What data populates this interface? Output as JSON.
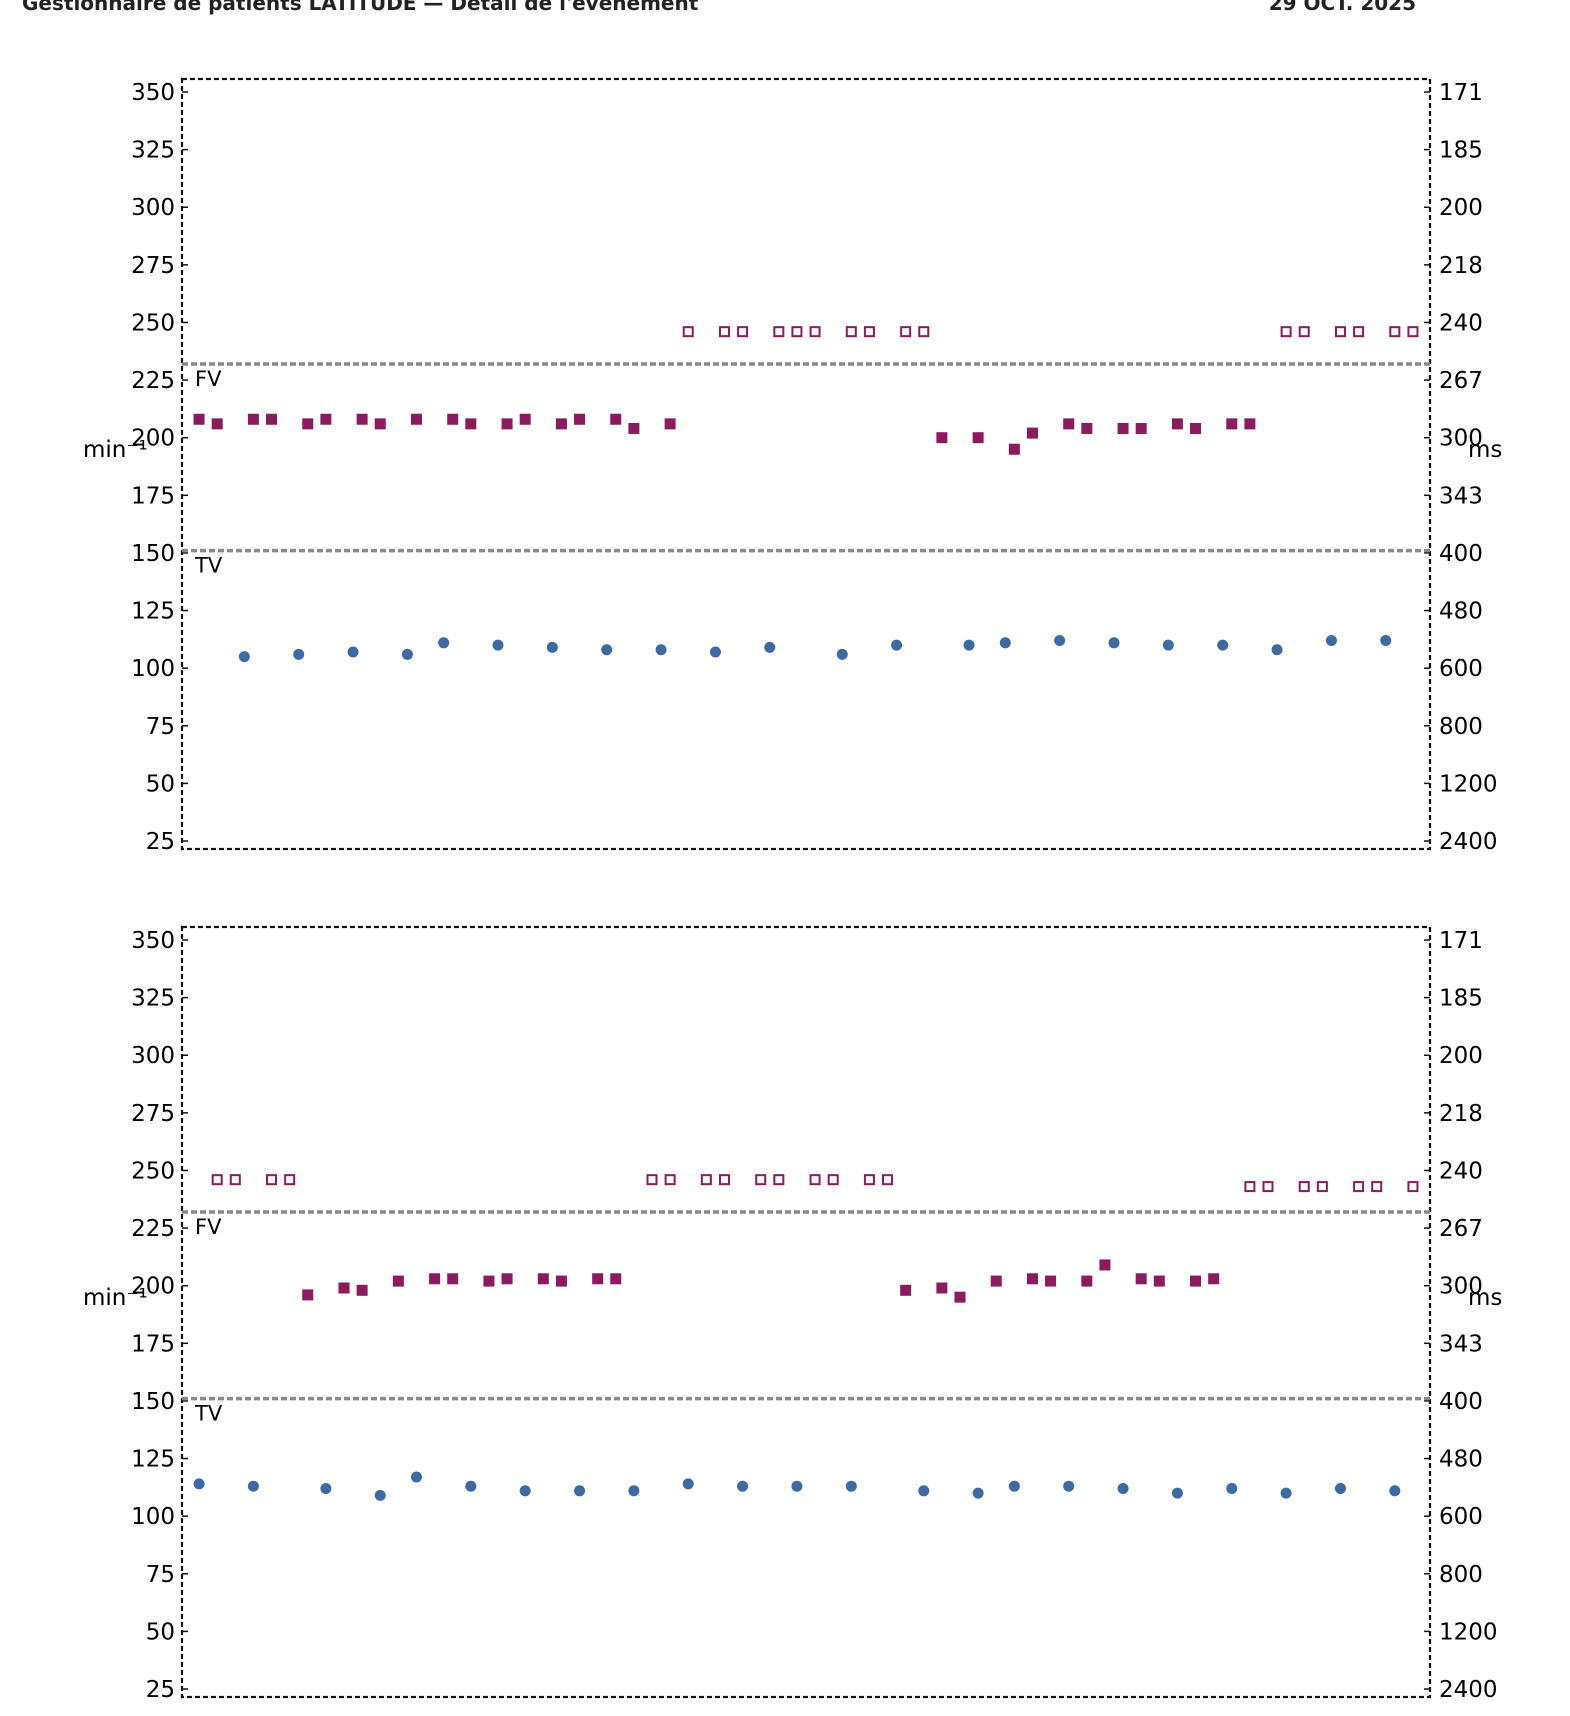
{
  "header": {
    "left": "Gestionnaire de patients LATITUDE — Détail de l'événement",
    "right": "29 OCT. 2025"
  },
  "chart_data": [
    {
      "type": "scatter",
      "y_left_label": "min⁻¹",
      "y_right_label": "ms",
      "y_left_ticks": [
        "350",
        "325",
        "300",
        "275",
        "250",
        "225",
        "200",
        "175",
        "150",
        "125",
        "100",
        "75",
        "50",
        "25"
      ],
      "y_right_ticks": [
        "171",
        "185",
        "200",
        "218",
        "240",
        "267",
        "300",
        "343",
        "400",
        "480",
        "600",
        "800",
        "1200",
        "2400"
      ],
      "ylim": [
        25,
        350
      ],
      "zone_labels": [
        "FV",
        "TV"
      ],
      "zone_thresholds": [
        232,
        151
      ],
      "series": [
        {
          "marker": "filled-square",
          "color": "#8b1a5e",
          "points": [
            [
              0.5,
              208
            ],
            [
              1.5,
              206
            ],
            [
              3.5,
              208
            ],
            [
              4.5,
              208
            ],
            [
              6.5,
              206
            ],
            [
              7.5,
              208
            ],
            [
              9.5,
              208
            ],
            [
              10.5,
              206
            ],
            [
              12.5,
              208
            ],
            [
              14.5,
              208
            ],
            [
              15.5,
              206
            ],
            [
              17.5,
              206
            ],
            [
              18.5,
              208
            ],
            [
              20.5,
              206
            ],
            [
              21.5,
              208
            ],
            [
              23.5,
              208
            ],
            [
              24.5,
              204
            ],
            [
              26.5,
              206
            ],
            [
              41.5,
              200
            ],
            [
              43.5,
              200
            ],
            [
              45.5,
              195
            ],
            [
              46.5,
              202
            ],
            [
              48.5,
              206
            ],
            [
              49.5,
              204
            ],
            [
              51.5,
              204
            ],
            [
              52.5,
              204
            ],
            [
              54.5,
              206
            ],
            [
              55.5,
              204
            ],
            [
              57.5,
              206
            ],
            [
              58.5,
              206
            ]
          ]
        },
        {
          "marker": "open-square",
          "color": "#8b1a5e",
          "points": [
            [
              27.5,
              246
            ],
            [
              29.5,
              246
            ],
            [
              30.5,
              246
            ],
            [
              32.5,
              246
            ],
            [
              33.5,
              246
            ],
            [
              34.5,
              246
            ],
            [
              36.5,
              246
            ],
            [
              37.5,
              246
            ],
            [
              39.5,
              246
            ],
            [
              40.5,
              246
            ],
            [
              60.5,
              246
            ],
            [
              61.5,
              246
            ],
            [
              63.5,
              246
            ],
            [
              64.5,
              246
            ],
            [
              66.5,
              246
            ],
            [
              67.5,
              246
            ]
          ]
        },
        {
          "marker": "circle",
          "color": "#3d6aa3",
          "points": [
            [
              3,
              105
            ],
            [
              6,
              106
            ],
            [
              9,
              107
            ],
            [
              12,
              106
            ],
            [
              14,
              111
            ],
            [
              17,
              110
            ],
            [
              20,
              109
            ],
            [
              23,
              108
            ],
            [
              26,
              108
            ],
            [
              29,
              107
            ],
            [
              32,
              109
            ],
            [
              36,
              106
            ],
            [
              39,
              110
            ],
            [
              43,
              110
            ],
            [
              45,
              111
            ],
            [
              48,
              112
            ],
            [
              51,
              111
            ],
            [
              54,
              110
            ],
            [
              57,
              110
            ],
            [
              60,
              108
            ],
            [
              63,
              112
            ],
            [
              66,
              112
            ]
          ]
        }
      ]
    },
    {
      "type": "scatter",
      "y_left_label": "min⁻¹",
      "y_right_label": "ms",
      "y_left_ticks": [
        "350",
        "325",
        "300",
        "275",
        "250",
        "225",
        "200",
        "175",
        "150",
        "125",
        "100",
        "75",
        "50",
        "25"
      ],
      "y_right_ticks": [
        "171",
        "185",
        "200",
        "218",
        "240",
        "267",
        "300",
        "343",
        "400",
        "480",
        "600",
        "800",
        "1200",
        "2400"
      ],
      "ylim": [
        25,
        350
      ],
      "zone_labels": [
        "FV",
        "TV"
      ],
      "zone_thresholds": [
        232,
        151
      ],
      "series": [
        {
          "marker": "filled-square",
          "color": "#8b1a5e",
          "points": [
            [
              6.5,
              196
            ],
            [
              8.5,
              199
            ],
            [
              9.5,
              198
            ],
            [
              11.5,
              202
            ],
            [
              13.5,
              203
            ],
            [
              14.5,
              203
            ],
            [
              16.5,
              202
            ],
            [
              17.5,
              203
            ],
            [
              19.5,
              203
            ],
            [
              20.5,
              202
            ],
            [
              22.5,
              203
            ],
            [
              23.5,
              203
            ],
            [
              39.5,
              198
            ],
            [
              41.5,
              199
            ],
            [
              42.5,
              195
            ],
            [
              44.5,
              202
            ],
            [
              46.5,
              203
            ],
            [
              47.5,
              202
            ],
            [
              49.5,
              202
            ],
            [
              50.5,
              209
            ],
            [
              52.5,
              203
            ],
            [
              53.5,
              202
            ],
            [
              55.5,
              202
            ],
            [
              56.5,
              203
            ]
          ]
        },
        {
          "marker": "open-square",
          "color": "#8b1a5e",
          "points": [
            [
              1.5,
              246
            ],
            [
              2.5,
              246
            ],
            [
              4.5,
              246
            ],
            [
              5.5,
              246
            ],
            [
              25.5,
              246
            ],
            [
              26.5,
              246
            ],
            [
              28.5,
              246
            ],
            [
              29.5,
              246
            ],
            [
              31.5,
              246
            ],
            [
              32.5,
              246
            ],
            [
              34.5,
              246
            ],
            [
              35.5,
              246
            ],
            [
              37.5,
              246
            ],
            [
              38.5,
              246
            ],
            [
              58.5,
              243
            ],
            [
              59.5,
              243
            ],
            [
              61.5,
              243
            ],
            [
              62.5,
              243
            ],
            [
              64.5,
              243
            ],
            [
              65.5,
              243
            ],
            [
              67.5,
              243
            ]
          ]
        },
        {
          "marker": "circle",
          "color": "#3d6aa3",
          "points": [
            [
              0.5,
              114
            ],
            [
              3.5,
              113
            ],
            [
              7.5,
              112
            ],
            [
              10.5,
              109
            ],
            [
              12.5,
              117
            ],
            [
              15.5,
              113
            ],
            [
              18.5,
              111
            ],
            [
              21.5,
              111
            ],
            [
              24.5,
              111
            ],
            [
              27.5,
              114
            ],
            [
              30.5,
              113
            ],
            [
              33.5,
              113
            ],
            [
              36.5,
              113
            ],
            [
              40.5,
              111
            ],
            [
              43.5,
              110
            ],
            [
              45.5,
              113
            ],
            [
              48.5,
              113
            ],
            [
              51.5,
              112
            ],
            [
              54.5,
              110
            ],
            [
              57.5,
              112
            ],
            [
              60.5,
              110
            ],
            [
              63.5,
              112
            ],
            [
              66.5,
              111
            ]
          ]
        }
      ]
    }
  ]
}
